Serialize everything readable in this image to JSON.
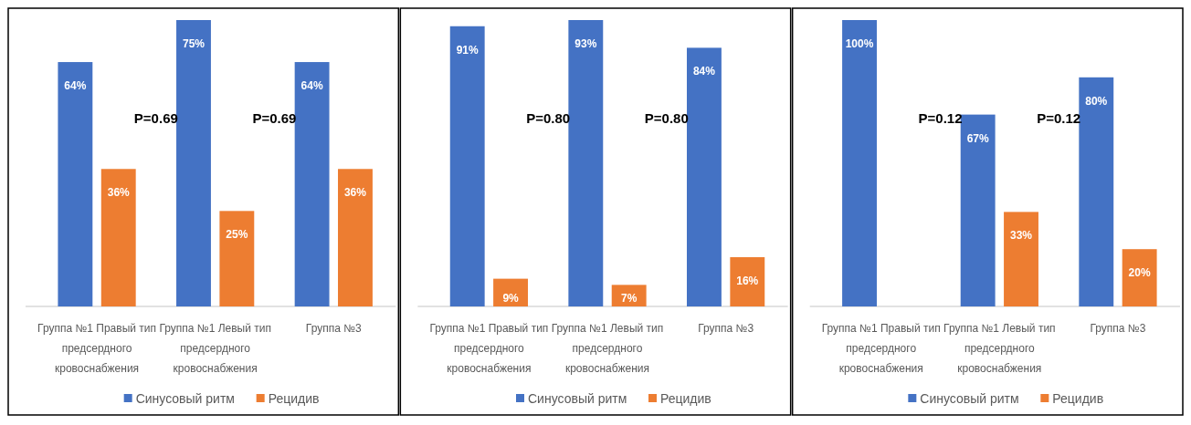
{
  "chart_data": [
    {
      "type": "bar",
      "categories": [
        "Группа №1 Правый тип предсердного кровоснабжения",
        "Группа №1 Левый тип предсердного кровоснабжения",
        "Группа №3"
      ],
      "series": [
        {
          "name": "Синусовый ритм",
          "color": "#4472c4",
          "values": [
            64,
            75,
            64
          ],
          "value_labels": [
            "64%",
            "75%",
            "64%"
          ]
        },
        {
          "name": "Рецидив",
          "color": "#ed7d31",
          "values": [
            36,
            25,
            36
          ],
          "value_labels": [
            "36%",
            "25%",
            "36%"
          ]
        }
      ],
      "annotations": [
        "P=0.69",
        "P=0.69"
      ],
      "legend": "bottom"
    },
    {
      "type": "bar",
      "categories": [
        "Группа №1 Правый тип предсердного кровоснабжения",
        "Группа №1 Левый тип предсердного кровоснабжения",
        "Группа №3"
      ],
      "series": [
        {
          "name": "Синусовый ритм",
          "color": "#4472c4",
          "values": [
            91,
            93,
            84
          ],
          "value_labels": [
            "91%",
            "93%",
            "84%"
          ]
        },
        {
          "name": "Рецидив",
          "color": "#ed7d31",
          "values": [
            9,
            7,
            16
          ],
          "value_labels": [
            "9%",
            "7%",
            "16%"
          ]
        }
      ],
      "annotations": [
        "P=0.80",
        "P=0.80"
      ],
      "legend": "bottom"
    },
    {
      "type": "bar",
      "categories": [
        "Группа №1 Правый тип предсердного кровоснабжения",
        "Группа №1 Левый тип предсердного кровоснабжения",
        "Группа №3"
      ],
      "series": [
        {
          "name": "Синусовый ритм",
          "color": "#4472c4",
          "values": [
            100,
            67,
            80
          ],
          "value_labels": [
            "100%",
            "67%",
            "80%"
          ]
        },
        {
          "name": "Рецидив",
          "color": "#ed7d31",
          "values": [
            null,
            33,
            20
          ],
          "value_labels": [
            null,
            "33%",
            "20%"
          ]
        }
      ],
      "annotations": [
        "P=0.12",
        "P=0.12"
      ],
      "legend": "bottom"
    }
  ]
}
